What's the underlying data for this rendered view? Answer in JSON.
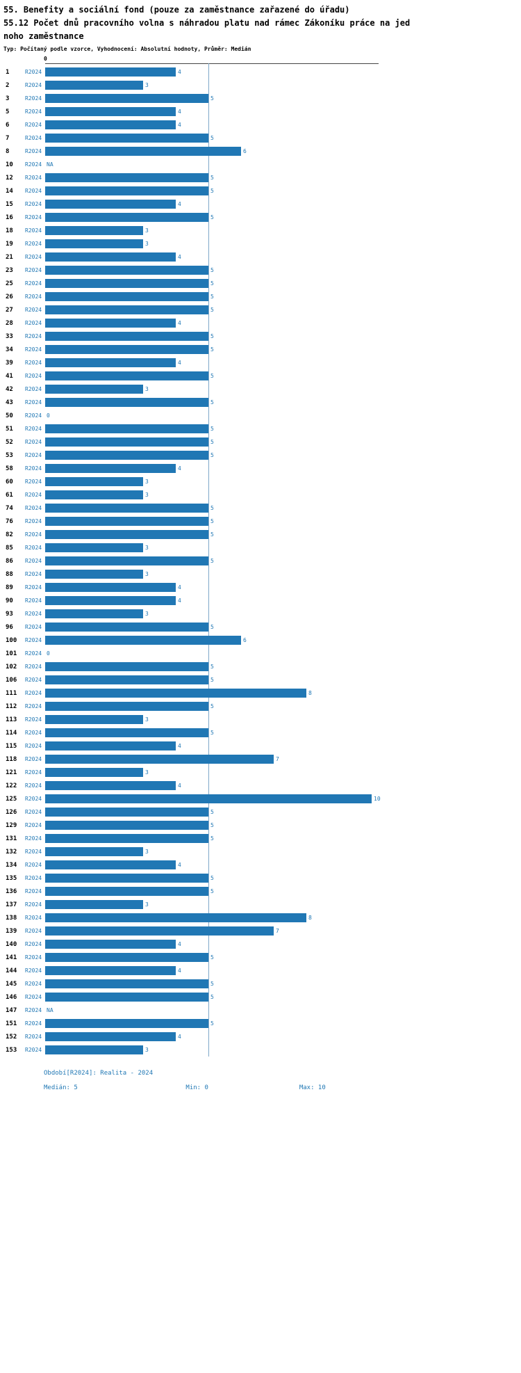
{
  "chart_data": {
    "type": "bar",
    "orientation": "horizontal",
    "title": "55. Benefity a sociální fond (pouze za zaměstnance zařazené do úřadu)",
    "subtitle": "55.12 Počet dnů pracovního volna s náhradou platu nad rámec Zákoníku práce na jednoho zaměstnance",
    "meta": "Typ: Počítaný podle vzorce, Vyhodnocení: Absolutní hodnoty, Průměr: Medián",
    "series_label": "R2024",
    "x_axis": {
      "tick": "0",
      "min": 0,
      "max": 10
    },
    "median_line": 5,
    "grid": "median-line-only",
    "legend_position": "none",
    "colors": {
      "bar": "#2077b4",
      "text_accent": "#1f77b4",
      "median_line": "#7fa8c9"
    },
    "rows": [
      {
        "id": "1",
        "value": 4
      },
      {
        "id": "2",
        "value": 3
      },
      {
        "id": "3",
        "value": 5
      },
      {
        "id": "5",
        "value": 4
      },
      {
        "id": "6",
        "value": 4
      },
      {
        "id": "7",
        "value": 5
      },
      {
        "id": "8",
        "value": 6
      },
      {
        "id": "10",
        "value": "NA"
      },
      {
        "id": "12",
        "value": 5
      },
      {
        "id": "14",
        "value": 5
      },
      {
        "id": "15",
        "value": 4
      },
      {
        "id": "16",
        "value": 5
      },
      {
        "id": "18",
        "value": 3
      },
      {
        "id": "19",
        "value": 3
      },
      {
        "id": "21",
        "value": 4
      },
      {
        "id": "23",
        "value": 5
      },
      {
        "id": "25",
        "value": 5
      },
      {
        "id": "26",
        "value": 5
      },
      {
        "id": "27",
        "value": 5
      },
      {
        "id": "28",
        "value": 4
      },
      {
        "id": "33",
        "value": 5
      },
      {
        "id": "34",
        "value": 5
      },
      {
        "id": "39",
        "value": 4
      },
      {
        "id": "41",
        "value": 5
      },
      {
        "id": "42",
        "value": 3
      },
      {
        "id": "43",
        "value": 5
      },
      {
        "id": "50",
        "value": 0
      },
      {
        "id": "51",
        "value": 5
      },
      {
        "id": "52",
        "value": 5
      },
      {
        "id": "53",
        "value": 5
      },
      {
        "id": "58",
        "value": 4
      },
      {
        "id": "60",
        "value": 3
      },
      {
        "id": "61",
        "value": 3
      },
      {
        "id": "74",
        "value": 5
      },
      {
        "id": "76",
        "value": 5
      },
      {
        "id": "82",
        "value": 5
      },
      {
        "id": "85",
        "value": 3
      },
      {
        "id": "86",
        "value": 5
      },
      {
        "id": "88",
        "value": 3
      },
      {
        "id": "89",
        "value": 4
      },
      {
        "id": "90",
        "value": 4
      },
      {
        "id": "93",
        "value": 3
      },
      {
        "id": "96",
        "value": 5
      },
      {
        "id": "100",
        "value": 6
      },
      {
        "id": "101",
        "value": 0
      },
      {
        "id": "102",
        "value": 5
      },
      {
        "id": "106",
        "value": 5
      },
      {
        "id": "111",
        "value": 8
      },
      {
        "id": "112",
        "value": 5
      },
      {
        "id": "113",
        "value": 3
      },
      {
        "id": "114",
        "value": 5
      },
      {
        "id": "115",
        "value": 4
      },
      {
        "id": "118",
        "value": 7
      },
      {
        "id": "121",
        "value": 3
      },
      {
        "id": "122",
        "value": 4
      },
      {
        "id": "125",
        "value": 10
      },
      {
        "id": "126",
        "value": 5
      },
      {
        "id": "129",
        "value": 5
      },
      {
        "id": "131",
        "value": 5
      },
      {
        "id": "132",
        "value": 3
      },
      {
        "id": "134",
        "value": 4
      },
      {
        "id": "135",
        "value": 5
      },
      {
        "id": "136",
        "value": 5
      },
      {
        "id": "137",
        "value": 3
      },
      {
        "id": "138",
        "value": 8
      },
      {
        "id": "139",
        "value": 7
      },
      {
        "id": "140",
        "value": 4
      },
      {
        "id": "141",
        "value": 5
      },
      {
        "id": "144",
        "value": 4
      },
      {
        "id": "145",
        "value": 5
      },
      {
        "id": "146",
        "value": 5
      },
      {
        "id": "147",
        "value": "NA"
      },
      {
        "id": "151",
        "value": 5
      },
      {
        "id": "152",
        "value": 4
      },
      {
        "id": "153",
        "value": 3
      }
    ],
    "footer": {
      "period": "Období[R2024]: Realita - 2024",
      "median": "Medián: 5",
      "min": "Min: 0",
      "max": "Max: 10"
    }
  }
}
